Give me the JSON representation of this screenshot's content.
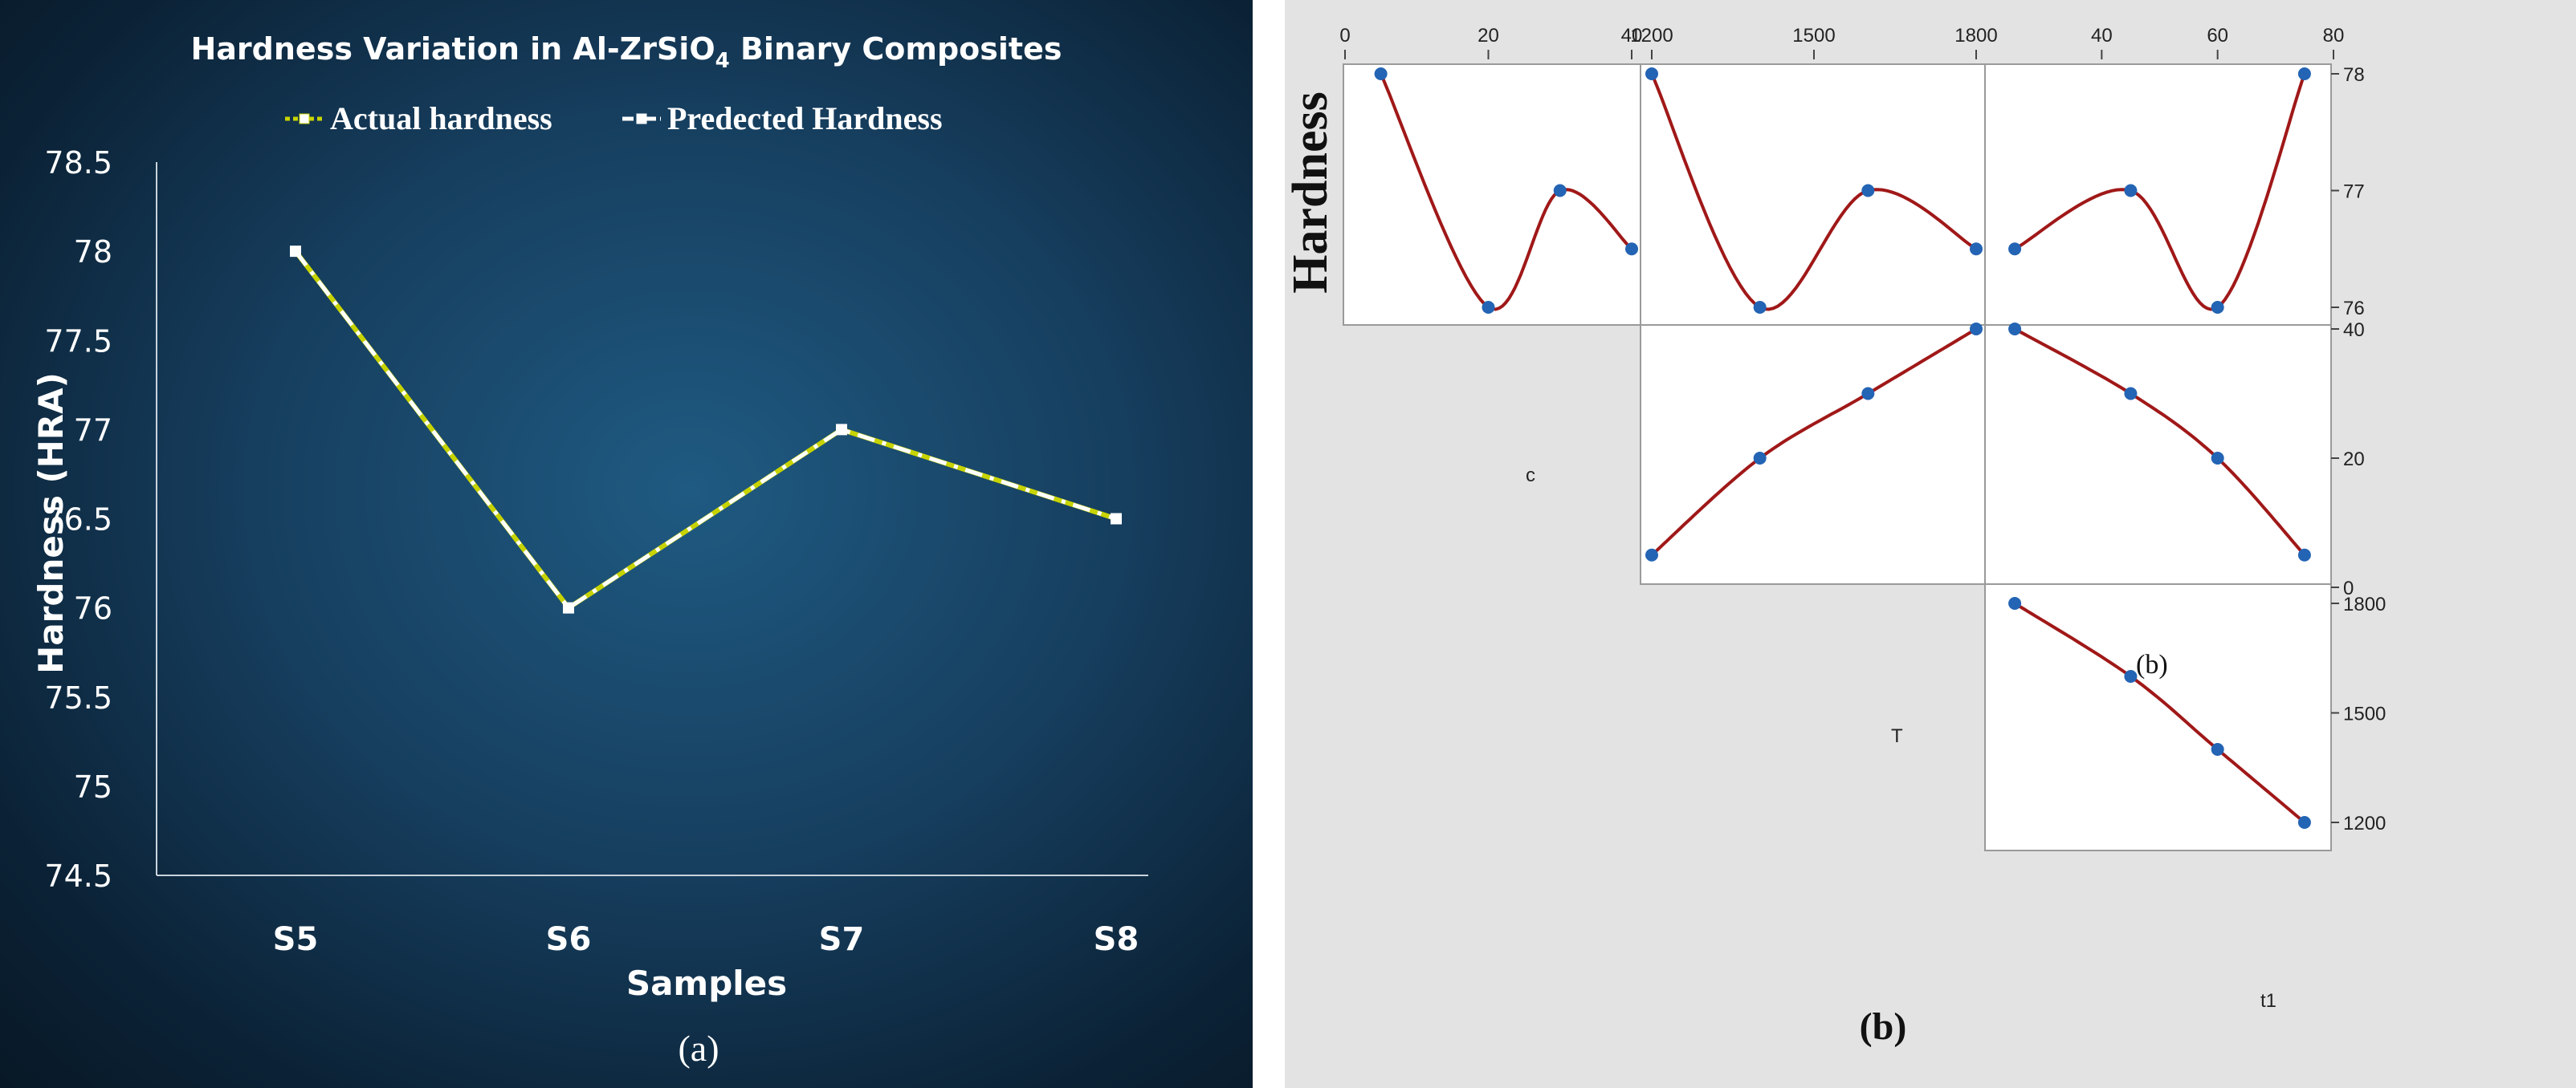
{
  "chart_data": [
    {
      "panel_label": "(a)",
      "type": "line",
      "title": "Hardness Variation in Al-ZrSiO",
      "title_sub": "4",
      "title_end": " Binary Composites",
      "xlabel": "Samples",
      "ylabel": "Hardness (HRA)",
      "categories": [
        "S5",
        "S6",
        "S7",
        "S8"
      ],
      "ylim": [
        74.5,
        78.5
      ],
      "yticks": [
        "74.5",
        "75",
        "75.5",
        "76",
        "76.5",
        "77",
        "77.5",
        "78",
        "78.5"
      ],
      "legend_placement": "top",
      "series": [
        {
          "name": "Actual hardness",
          "values": [
            78,
            76,
            77,
            76.5
          ],
          "color": "#c8d400"
        },
        {
          "name": "Predected Hardness",
          "values": [
            78,
            76,
            77,
            76.5
          ],
          "color": "#ffffff"
        }
      ]
    },
    {
      "panel_label": "(b)",
      "panel_label_inner": "(b)",
      "type": "scatter",
      "response": "Hardness",
      "factors": [
        "c",
        "T",
        "t1"
      ],
      "curve_color": "#a01818",
      "point_color": "#2364b4",
      "subplots": [
        {
          "x": [
            5,
            20,
            30,
            40
          ],
          "y": [
            78,
            76,
            77,
            76.5
          ],
          "xlim": [
            0,
            40
          ],
          "ylim": [
            75.9,
            78.1
          ]
        },
        {
          "x": [
            1200,
            1400,
            1600,
            1800
          ],
          "y": [
            78,
            76,
            77,
            76.5
          ],
          "xlim": [
            1200,
            1800
          ],
          "ylim": [
            75.9,
            78.1
          ]
        },
        {
          "x": [
            25,
            45,
            60,
            75
          ],
          "y": [
            76.5,
            77,
            76,
            78
          ],
          "xlim": [
            20,
            80
          ],
          "ylim": [
            75.9,
            78.1
          ]
        },
        {
          "x": [
            1200,
            1400,
            1600,
            1800
          ],
          "y": [
            5,
            20,
            30,
            40
          ],
          "xlim": [
            1200,
            1800
          ],
          "ylim": [
            0,
            40
          ]
        },
        {
          "x": [
            25,
            45,
            60,
            75
          ],
          "y": [
            40,
            30,
            20,
            5
          ],
          "xlim": [
            20,
            80
          ],
          "ylim": [
            0,
            40
          ]
        },
        {
          "x": [
            25,
            45,
            60,
            75
          ],
          "y": [
            1800,
            1600,
            1400,
            1200
          ],
          "xlim": [
            20,
            80
          ],
          "ylim": [
            1150,
            1850
          ]
        }
      ],
      "top_ticks": {
        "c": [
          "0",
          "20",
          "40"
        ],
        "T": [
          "1200",
          "1500",
          "1800"
        ],
        "t1": [
          "40",
          "60",
          "80"
        ]
      },
      "right_ticks": {
        "Hardness": [
          "78",
          "77",
          "76"
        ],
        "c": [
          "40",
          "20",
          "0"
        ],
        "T": [
          "1800",
          "1500",
          "1200"
        ]
      }
    }
  ]
}
